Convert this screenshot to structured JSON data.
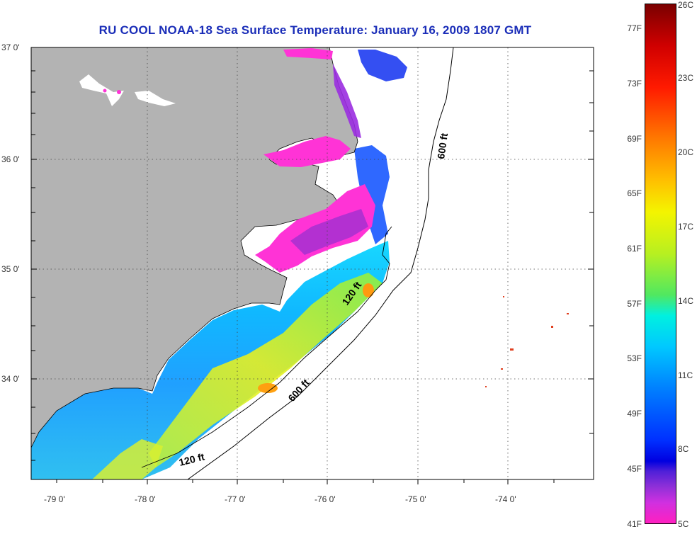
{
  "title": "RU COOL  NOAA-18  Sea Surface Temperature:  January 16, 2009 1807 GMT",
  "colors": {
    "land": "#b3b3b3",
    "ocean": "#ffffff",
    "sound": "#ff33d6",
    "sound_deep": "#a030d0",
    "title": "#1a2db8"
  },
  "axes": {
    "lat_labels": [
      "37 0'",
      "36 0'",
      "35 0'",
      "34 0'"
    ],
    "lon_labels": [
      "-79 0'",
      "-78 0'",
      "-77 0'",
      "-76 0'",
      "-75 0'",
      "-74 0'"
    ]
  },
  "contours": {
    "label_600_north": "600 ft",
    "label_120_mid": "120 ft",
    "label_600_south": "600 ft",
    "label_120_south": "120 ft"
  },
  "colorbar": {
    "fahrenheit": [
      "77F",
      "73F",
      "69F",
      "65F",
      "61F",
      "57F",
      "53F",
      "49F",
      "45F",
      "41F"
    ],
    "celsius": [
      "26C",
      "23C",
      "20C",
      "17C",
      "14C",
      "11C",
      "8C",
      "5C"
    ]
  }
}
